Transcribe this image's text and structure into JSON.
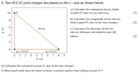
{
  "chart_data": {
    "type": "line",
    "title": "6. Two ±5.0 nC point charges are placed on the x – axis as shown below.",
    "x_label": "X, cm",
    "y_label": "y, cm",
    "xlim": [
      -0.5,
      9.5
    ],
    "ylim": [
      -1.0,
      11.5
    ],
    "xticks": [
      0,
      1,
      2,
      3,
      4,
      5,
      6,
      7,
      8,
      9
    ],
    "yticks": [
      0,
      2,
      4,
      6,
      8,
      10
    ],
    "grid": false,
    "series": [
      {
        "type": "line",
        "color": "#c8a878",
        "x": [
          0,
          0,
          8,
          0
        ],
        "values": [
          10,
          0,
          0,
          10
        ]
      },
      {
        "type": "scatter",
        "marker": "circle",
        "color": "#555555",
        "x": [
          0,
          8,
          0
        ],
        "values": [
          0,
          0,
          10
        ]
      }
    ],
    "annotations": [
      {
        "text": "P₂",
        "x": 0,
        "y": 10
      },
      {
        "text": "q₁= -5.0 nC",
        "x": 0,
        "y": 0
      },
      {
        "text": "q₂= 5.0 nC",
        "x": 8,
        "y": 0
      },
      {
        "text": "10 cm",
        "x": 4,
        "y": 5
      }
    ],
    "questions": [
      {
        "lines": [
          "a) Calculate the individual electric fields",
          "at point P₂ due to i) q₁ and ii) q₂."
        ],
        "marks": "(7)"
      },
      {
        "lines": [
          "b) Calculate the magnitude of net electric",
          "field at point P₂ due to the two charges."
        ],
        "marks": "(2)"
      },
      {
        "lines": [
          "c) Calculate the direction of the net",
          "electric field you calculated in part (b)",
          "above."
        ],
        "marks": "(2)"
      }
    ],
    "footer": [
      "d) Calculate the potential at point P₂ due to the two charges.",
      "e) How much work must be done to move a neutral sphere from infinity to point P₂?"
    ]
  }
}
